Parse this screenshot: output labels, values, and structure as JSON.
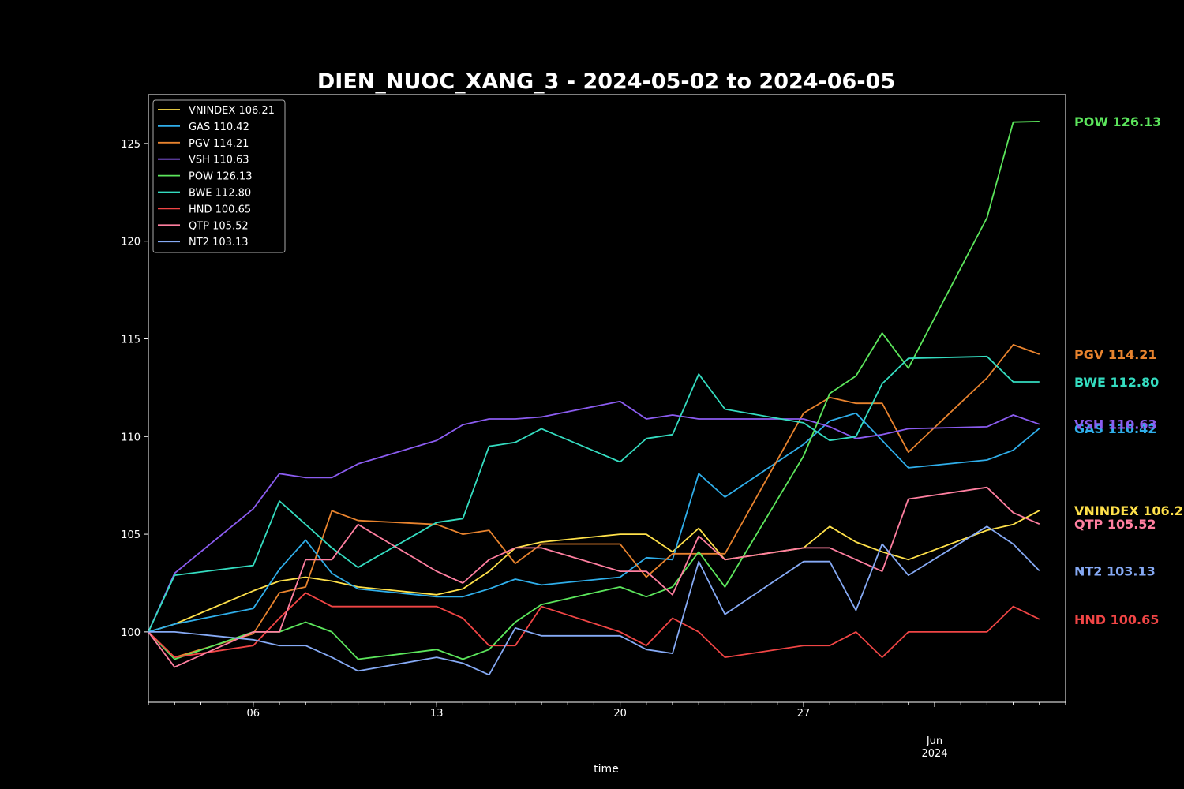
{
  "chart_data": {
    "type": "line",
    "title": "DIEN_NUOC_XANG_3 - 2024-05-02 to 2024-06-05",
    "xlabel": "time",
    "ylabel": "",
    "ylim": [
      96.4,
      127.5
    ],
    "xlim": [
      "2024-05-02",
      "2024-06-06"
    ],
    "yticks": [
      100,
      105,
      110,
      115,
      120,
      125
    ],
    "xticks": [
      {
        "date": "2024-05-06",
        "label": "06"
      },
      {
        "date": "2024-05-13",
        "label": "13"
      },
      {
        "date": "2024-05-20",
        "label": "20"
      },
      {
        "date": "2024-05-27",
        "label": "27"
      },
      {
        "date": "2024-06-01",
        "label": "Jun",
        "sublabel": "2024"
      }
    ],
    "grid": false,
    "legend_position": "top-left",
    "x": [
      "2024-05-02",
      "2024-05-03",
      "2024-05-06",
      "2024-05-07",
      "2024-05-08",
      "2024-05-09",
      "2024-05-10",
      "2024-05-13",
      "2024-05-14",
      "2024-05-15",
      "2024-05-16",
      "2024-05-17",
      "2024-05-20",
      "2024-05-21",
      "2024-05-22",
      "2024-05-23",
      "2024-05-24",
      "2024-05-27",
      "2024-05-28",
      "2024-05-29",
      "2024-05-30",
      "2024-05-31",
      "2024-06-03",
      "2024-06-04",
      "2024-06-05"
    ],
    "series": [
      {
        "name": "VNINDEX",
        "label": "VNINDEX 106.21",
        "end_label": "VNINDEX 106.21",
        "color": "#FFE14A",
        "values": [
          100.0,
          100.4,
          102.1,
          102.6,
          102.8,
          102.6,
          102.3,
          101.9,
          102.2,
          103.1,
          104.3,
          104.6,
          105.0,
          105.0,
          104.1,
          105.3,
          103.7,
          104.3,
          105.4,
          104.6,
          104.1,
          103.7,
          105.2,
          105.5,
          106.21
        ]
      },
      {
        "name": "GAS",
        "label": "GAS 110.42",
        "end_label": "GAS 110.42",
        "color": "#2FAEEA",
        "values": [
          100.0,
          100.4,
          101.2,
          103.2,
          104.7,
          103.0,
          102.2,
          101.8,
          101.8,
          102.2,
          102.7,
          102.4,
          102.8,
          103.8,
          103.7,
          108.1,
          106.9,
          109.6,
          110.8,
          111.2,
          109.8,
          108.4,
          108.8,
          109.3,
          110.42
        ]
      },
      {
        "name": "PGV",
        "label": "PGV 114.21",
        "end_label": "PGV 114.21",
        "color": "#E8832E",
        "values": [
          100.0,
          98.7,
          99.9,
          102.0,
          102.3,
          106.2,
          105.7,
          105.5,
          105.0,
          105.2,
          103.5,
          104.5,
          104.5,
          102.8,
          104.0,
          104.0,
          104.0,
          111.2,
          112.0,
          111.7,
          111.7,
          109.2,
          113.0,
          114.7,
          114.21
        ]
      },
      {
        "name": "VSH",
        "label": "VSH 110.63",
        "end_label": "VSH 110.63",
        "color": "#8B5CF0",
        "values": [
          100.0,
          103.0,
          106.3,
          108.1,
          107.9,
          107.9,
          108.6,
          109.8,
          110.6,
          110.9,
          110.9,
          111.0,
          111.8,
          110.9,
          111.1,
          110.9,
          110.9,
          110.9,
          110.5,
          109.9,
          110.1,
          110.4,
          110.5,
          111.1,
          110.63
        ]
      },
      {
        "name": "POW",
        "label": "POW 126.13",
        "end_label": "POW 126.13",
        "color": "#5CE65C",
        "values": [
          100.0,
          98.6,
          100.0,
          100.0,
          100.5,
          100.0,
          98.6,
          99.1,
          98.6,
          99.1,
          100.5,
          101.4,
          102.3,
          101.8,
          102.3,
          104.1,
          102.3,
          109.0,
          112.2,
          113.1,
          115.3,
          113.5,
          121.2,
          126.1,
          126.13
        ]
      },
      {
        "name": "BWE",
        "label": "BWE 112.80",
        "end_label": "BWE 112.80",
        "color": "#34DCC0",
        "values": [
          100.0,
          102.9,
          103.4,
          106.7,
          105.5,
          104.3,
          103.3,
          105.6,
          105.8,
          109.5,
          109.7,
          110.4,
          108.7,
          109.9,
          110.1,
          113.2,
          111.4,
          110.7,
          109.8,
          110.0,
          112.7,
          114.0,
          114.1,
          112.8,
          112.8
        ]
      },
      {
        "name": "HND",
        "label": "HND 100.65",
        "end_label": "HND 100.65",
        "color": "#F04545",
        "values": [
          100.0,
          98.7,
          99.3,
          100.7,
          102.0,
          101.3,
          101.3,
          101.3,
          100.7,
          99.3,
          99.3,
          101.3,
          100.0,
          99.3,
          100.7,
          100.0,
          98.7,
          99.3,
          99.3,
          100.0,
          98.7,
          100.0,
          100.0,
          101.3,
          100.65
        ]
      },
      {
        "name": "QTP",
        "label": "QTP 105.52",
        "end_label": "QTP 105.52",
        "color": "#FF7FA0",
        "values": [
          100.0,
          98.2,
          100.0,
          100.0,
          103.7,
          103.7,
          105.5,
          103.1,
          102.5,
          103.7,
          104.3,
          104.3,
          103.1,
          103.1,
          101.9,
          104.9,
          103.7,
          104.3,
          104.3,
          103.7,
          103.1,
          106.8,
          107.4,
          106.1,
          105.52
        ]
      },
      {
        "name": "NT2",
        "label": "NT2 103.13",
        "end_label": "NT2 103.13",
        "color": "#86AAF5",
        "values": [
          100.0,
          100.0,
          99.6,
          99.3,
          99.3,
          98.7,
          98.0,
          98.7,
          98.4,
          97.8,
          100.2,
          99.8,
          99.8,
          99.1,
          98.9,
          103.6,
          100.9,
          103.6,
          103.6,
          101.1,
          104.5,
          102.9,
          105.4,
          104.5,
          103.13
        ]
      }
    ]
  }
}
